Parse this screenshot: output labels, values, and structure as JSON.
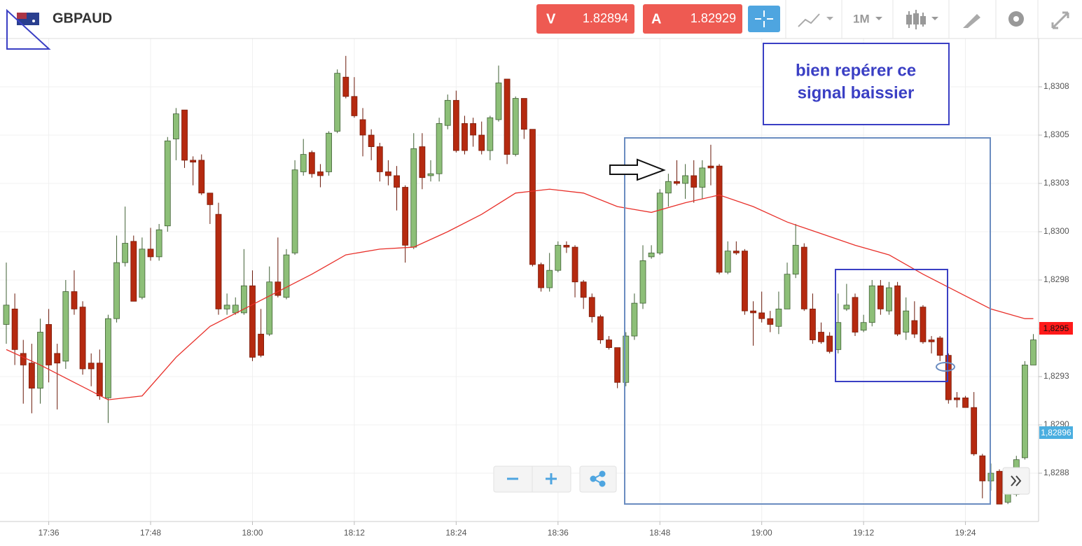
{
  "header": {
    "symbol": "GBPAUD",
    "sell_label": "V",
    "sell_price": "1.82894",
    "buy_label": "A",
    "buy_price": "1.82929",
    "timeframe": "1M"
  },
  "chart_data": {
    "type": "candlestick",
    "annotation": [
      "bien repérer ce",
      "signal baissier"
    ],
    "x": [
      "17:31",
      "17:32",
      "17:33",
      "17:34",
      "17:35",
      "17:36",
      "17:37",
      "17:38",
      "17:39",
      "17:40",
      "17:41",
      "17:42",
      "17:43",
      "17:44",
      "17:45",
      "17:46",
      "17:47",
      "17:48",
      "17:49",
      "17:50",
      "17:51",
      "17:52",
      "17:53",
      "17:54",
      "17:55",
      "17:56",
      "17:57",
      "17:58",
      "17:59",
      "18:00",
      "18:01",
      "18:02",
      "18:03",
      "18:04",
      "18:05",
      "18:06",
      "18:07",
      "18:08",
      "18:09",
      "18:10",
      "18:11",
      "18:12",
      "18:13",
      "18:14",
      "18:15",
      "18:16",
      "18:17",
      "18:18",
      "18:19",
      "18:20",
      "18:21",
      "18:22",
      "18:23",
      "18:24",
      "18:25",
      "18:26",
      "18:27",
      "18:28",
      "18:29",
      "18:30",
      "18:31",
      "18:32",
      "18:33",
      "18:34",
      "18:35",
      "18:36",
      "18:37",
      "18:38",
      "18:39",
      "18:40",
      "18:41",
      "18:42",
      "18:43",
      "18:44",
      "18:45",
      "18:46",
      "18:47",
      "18:48",
      "18:49",
      "18:50",
      "18:51",
      "18:52",
      "18:53",
      "18:54",
      "18:55",
      "18:56",
      "18:57",
      "18:58",
      "18:59",
      "19:00",
      "19:01",
      "19:02",
      "19:03",
      "19:04",
      "19:05",
      "19:06",
      "19:07",
      "19:08",
      "19:09",
      "19:10",
      "19:11",
      "19:12",
      "19:13",
      "19:14",
      "19:15",
      "19:16",
      "19:17",
      "19:18",
      "19:19",
      "19:20",
      "19:21",
      "19:22",
      "19:23",
      "19:24",
      "19:25",
      "19:26",
      "19:27",
      "19:28",
      "19:29",
      "19:30",
      "19:31",
      "19:32"
    ],
    "open": [
      1.82952,
      1.8296,
      1.82937,
      1.82932,
      1.82919,
      1.82952,
      1.82937,
      1.82933,
      1.82969,
      1.82961,
      1.82932,
      1.82932,
      1.82914,
      1.82955,
      1.82984,
      1.82995,
      1.82966,
      1.82991,
      1.82987,
      1.83003,
      1.83048,
      1.83063,
      1.83037,
      1.83037,
      1.8302,
      1.83009,
      1.8296,
      1.82958,
      1.82958,
      1.82972,
      1.82947,
      1.82947,
      1.82974,
      1.82966,
      1.82989,
      1.83031,
      1.83041,
      1.83031,
      1.83031,
      1.83052,
      1.8308,
      1.8307,
      1.83058,
      1.8305,
      1.83044,
      1.83031,
      1.83029,
      1.83023,
      1.82992,
      1.83044,
      1.83029,
      1.8303,
      1.83055,
      1.83068,
      1.83056,
      1.83056,
      1.8305,
      1.83042,
      1.83058,
      1.83079,
      1.8304,
      1.83069,
      1.83053,
      1.82983,
      1.82971,
      1.8298,
      1.82993,
      1.82992,
      1.82974,
      1.82966,
      1.82956,
      1.82944,
      1.8294,
      1.82922,
      1.82946,
      1.82963,
      1.82987,
      1.82989,
      1.8302,
      1.83026,
      1.83025,
      1.83029,
      1.83023,
      1.83034,
      1.83034,
      1.82979,
      1.8299,
      1.8299,
      1.82959,
      1.82958,
      1.82955,
      1.82951,
      1.8296,
      1.82978,
      1.82992,
      1.8296,
      1.82948,
      1.82946,
      1.82939,
      1.8296,
      1.82966,
      1.82949,
      1.82953,
      1.82972,
      1.82959,
      1.82972,
      1.82948,
      1.82954,
      1.82961,
      1.82944,
      1.82945,
      1.82936,
      1.82914,
      1.82914,
      1.82909,
      1.82884,
      1.82871,
      1.82876,
      1.8286,
      1.82864,
      1.82883,
      1.82931
    ],
    "high": [
      1.82984,
      1.82968,
      1.82944,
      1.82942,
      1.82955,
      1.8296,
      1.82942,
      1.82975,
      1.8298,
      1.82964,
      1.82937,
      1.82939,
      1.82957,
      1.82998,
      1.83013,
      1.82998,
      1.82997,
      1.83002,
      1.83004,
      1.83049,
      1.83064,
      1.83063,
      1.83039,
      1.8304,
      1.8302,
      1.83015,
      1.82968,
      1.82966,
      1.82991,
      1.8298,
      1.8296,
      1.82982,
      1.82997,
      1.82991,
      1.83037,
      1.83048,
      1.83042,
      1.83035,
      1.83052,
      1.83084,
      1.83091,
      1.8308,
      1.83064,
      1.83053,
      1.83046,
      1.83037,
      1.83034,
      1.83024,
      1.83051,
      1.83051,
      1.83037,
      1.83059,
      1.83071,
      1.83073,
      1.8306,
      1.83059,
      1.83057,
      1.8306,
      1.83086,
      1.83079,
      1.8307,
      1.83069,
      1.83053,
      1.82984,
      1.82989,
      1.82995,
      1.82995,
      1.82993,
      1.82975,
      1.82968,
      1.82957,
      1.82946,
      1.8294,
      1.82948,
      1.82968,
      1.82993,
      1.82993,
      1.83022,
      1.8303,
      1.83037,
      1.83035,
      1.83037,
      1.83037,
      1.83045,
      1.83035,
      1.82995,
      1.82995,
      1.82991,
      1.82964,
      1.82969,
      1.82959,
      1.82969,
      1.82984,
      1.83004,
      1.82994,
      1.82968,
      1.82953,
      1.82948,
      1.82968,
      1.82973,
      1.82968,
      1.82957,
      1.82975,
      1.82975,
      1.82974,
      1.82974,
      1.82966,
      1.82964,
      1.82962,
      1.82946,
      1.82946,
      1.82937,
      1.82917,
      1.82915,
      1.82917,
      1.82885,
      1.8288,
      1.82877,
      1.82868,
      1.82884,
      1.82933,
      1.82947
    ],
    "low": [
      1.82942,
      1.82931,
      1.82911,
      1.82906,
      1.82911,
      1.82922,
      1.82908,
      1.82929,
      1.82957,
      1.82926,
      1.8292,
      1.82913,
      1.82901,
      1.82953,
      1.82982,
      1.82964,
      1.82965,
      1.82985,
      1.82985,
      1.83,
      1.83037,
      1.83033,
      1.83024,
      1.83019,
      1.83004,
      1.82957,
      1.82957,
      1.82957,
      1.82957,
      1.82933,
      1.82935,
      1.82946,
      1.82966,
      1.82965,
      1.82988,
      1.83029,
      1.83028,
      1.83023,
      1.83029,
      1.83051,
      1.83069,
      1.83059,
      1.83039,
      1.83037,
      1.83026,
      1.83024,
      1.83011,
      1.82984,
      1.82991,
      1.83022,
      1.83026,
      1.83026,
      1.83053,
      1.83041,
      1.8304,
      1.83044,
      1.8304,
      1.83037,
      1.83057,
      1.83035,
      1.83039,
      1.83048,
      1.82982,
      1.82969,
      1.82969,
      1.82979,
      1.82989,
      1.82966,
      1.8296,
      1.82953,
      1.82942,
      1.82939,
      1.82919,
      1.8292,
      1.82944,
      1.8296,
      1.82986,
      1.82988,
      1.83013,
      1.83024,
      1.83017,
      1.83015,
      1.83017,
      1.83024,
      1.82978,
      1.82978,
      1.82988,
      1.82957,
      1.82941,
      1.82953,
      1.82948,
      1.82947,
      1.8296,
      1.82976,
      1.82959,
      1.82942,
      1.82942,
      1.82937,
      1.82937,
      1.82959,
      1.82946,
      1.82948,
      1.82951,
      1.82957,
      1.82957,
      1.82946,
      1.82944,
      1.82945,
      1.82942,
      1.82937,
      1.82933,
      1.82911,
      1.82909,
      1.82909,
      1.82884,
      1.82862,
      1.82866,
      1.82859,
      1.82859,
      1.82863,
      1.82882,
      1.82931
    ],
    "close": [
      1.82962,
      1.82939,
      1.82931,
      1.82919,
      1.82948,
      1.82931,
      1.82932,
      1.82969,
      1.8296,
      1.82929,
      1.82929,
      1.82915,
      1.82955,
      1.82984,
      1.82994,
      1.82964,
      1.82991,
      1.82987,
      1.83001,
      1.83047,
      1.83061,
      1.83037,
      1.83036,
      1.8302,
      1.83014,
      1.8296,
      1.82962,
      1.82962,
      1.82972,
      1.82935,
      1.82936,
      1.82974,
      1.82967,
      1.82988,
      1.83032,
      1.8304,
      1.8303,
      1.83029,
      1.83051,
      1.83082,
      1.8307,
      1.8306,
      1.8305,
      1.83044,
      1.83031,
      1.83029,
      1.83023,
      1.82993,
      1.83043,
      1.83028,
      1.8303,
      1.83056,
      1.83068,
      1.83042,
      1.83042,
      1.8305,
      1.83042,
      1.83059,
      1.83077,
      1.8304,
      1.83069,
      1.83053,
      1.82983,
      1.82971,
      1.8298,
      1.82993,
      1.82992,
      1.82974,
      1.82966,
      1.82956,
      1.82944,
      1.8294,
      1.82922,
      1.82946,
      1.82963,
      1.82985,
      1.82989,
      1.8302,
      1.83026,
      1.83025,
      1.83029,
      1.83023,
      1.83033,
      1.83033,
      1.82979,
      1.8299,
      1.82989,
      1.82959,
      1.82958,
      1.82955,
      1.82952,
      1.8296,
      1.82978,
      1.82993,
      1.8296,
      1.82944,
      1.82943,
      1.82938,
      1.82953,
      1.82962,
      1.82948,
      1.82953,
      1.82972,
      1.8296,
      1.82971,
      1.82947,
      1.82959,
      1.82947,
      1.82943,
      1.82943,
      1.82936,
      1.82913,
      1.82913,
      1.82909,
      1.82885,
      1.82871,
      1.82875,
      1.82859,
      1.82865,
      1.82882,
      1.82931,
      1.82944
    ],
    "up_color": "#8dbf78",
    "down_color": "#b52a10",
    "ma": {
      "color": "#e8302a",
      "x": [
        "17:31",
        "17:35",
        "17:39",
        "17:43",
        "17:47",
        "17:51",
        "17:55",
        "17:59",
        "18:03",
        "18:07",
        "18:11",
        "18:15",
        "18:19",
        "18:23",
        "18:27",
        "18:31",
        "18:35",
        "18:39",
        "18:43",
        "18:47",
        "18:51",
        "18:55",
        "18:59",
        "19:03",
        "19:07",
        "19:11",
        "19:15",
        "19:19",
        "19:23",
        "19:27",
        "19:31",
        "19:32"
      ],
      "values": [
        1.82939,
        1.82931,
        1.82922,
        1.82913,
        1.82915,
        1.82935,
        1.82951,
        1.8296,
        1.82969,
        1.82978,
        1.82988,
        1.82991,
        1.82992,
        1.83,
        1.83009,
        1.8302,
        1.83022,
        1.8302,
        1.83013,
        1.8301,
        1.83015,
        1.83019,
        1.83013,
        1.83005,
        1.82999,
        1.82993,
        1.82988,
        1.82978,
        1.82969,
        1.8296,
        1.82955,
        1.82955
      ]
    },
    "price_markers": [
      {
        "value": 1.8295,
        "label": "1,8295",
        "color": "#ff1a1a"
      },
      {
        "value": 1.82896,
        "label": "1,82896",
        "color": "#4aaee0"
      }
    ],
    "ylim": [
      1.8285,
      1.831
    ],
    "yticks": [
      {
        "value": 1.83075,
        "label": "1,8308"
      },
      {
        "value": 1.8305,
        "label": "1,8305"
      },
      {
        "value": 1.83025,
        "label": "1,8303"
      },
      {
        "value": 1.83,
        "label": "1,8300"
      },
      {
        "value": 1.82975,
        "label": "1,8298"
      },
      {
        "value": 1.8295,
        "label": "1,8295"
      },
      {
        "value": 1.82925,
        "label": "1,8293"
      },
      {
        "value": 1.829,
        "label": "1,8290"
      },
      {
        "value": 1.82875,
        "label": "1,8288"
      }
    ],
    "xticks": [
      "17:36",
      "17:48",
      "18:00",
      "18:12",
      "18:24",
      "18:36",
      "18:48",
      "19:00",
      "19:12",
      "19:24"
    ],
    "grid": true
  }
}
